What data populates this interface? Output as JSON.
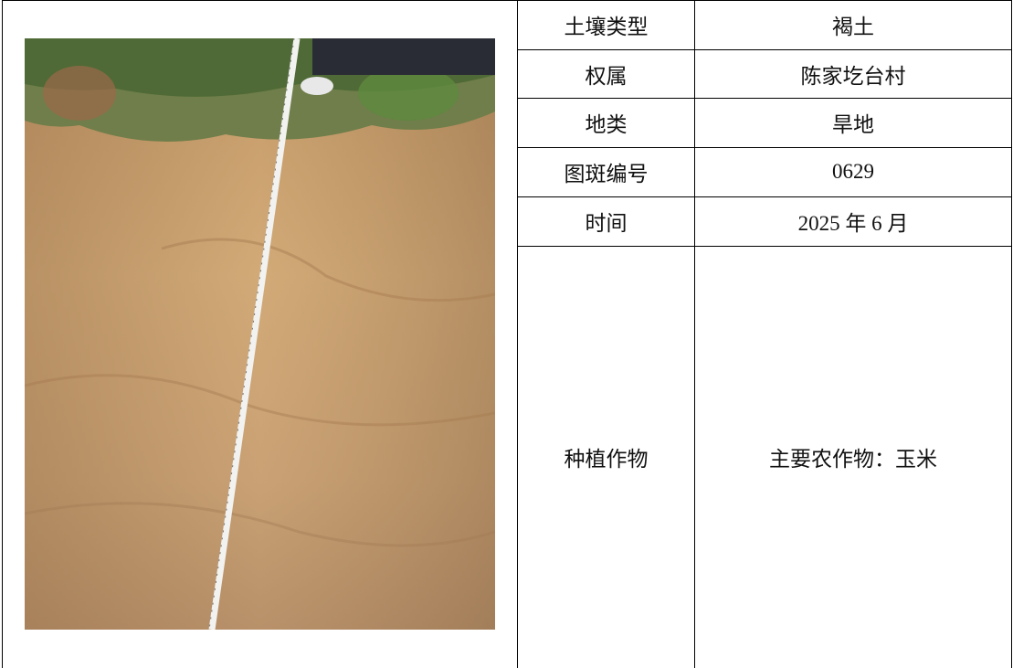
{
  "table": {
    "rows": [
      [
        "土壤类型",
        "褐土"
      ],
      [
        "权属",
        "陈家圪台村"
      ],
      [
        "地类",
        "旱地"
      ],
      [
        "图斑编号",
        "0629"
      ],
      [
        "时间",
        "2025 年 6 月"
      ],
      [
        "种植作物",
        "主要农作物：玉米"
      ]
    ]
  }
}
